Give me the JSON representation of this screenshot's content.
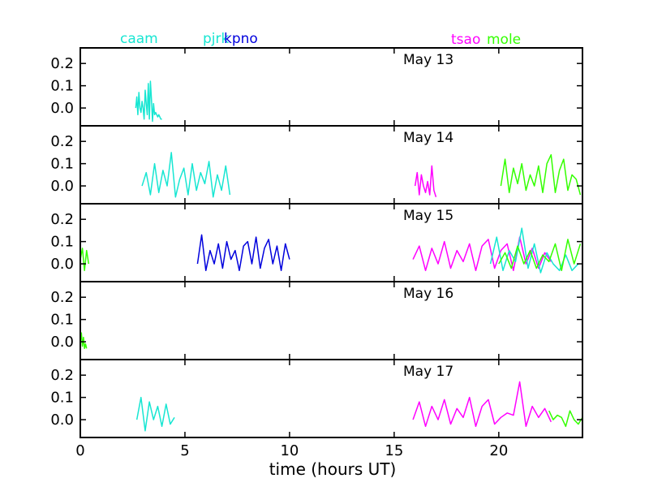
{
  "chart_data": {
    "type": "line",
    "xlabel": "time (hours UT)",
    "xlim": [
      0,
      24
    ],
    "ylim": [
      -0.08,
      0.27
    ],
    "x_ticks": [
      0,
      5,
      10,
      15,
      20
    ],
    "y_ticks": [
      0.0,
      0.1,
      0.2
    ],
    "x_tick_labels": [
      "0",
      "5",
      "10",
      "15",
      "20"
    ],
    "y_tick_labels": [
      "0.0",
      "0.1",
      "0.2"
    ],
    "station_legend": [
      {
        "name": "caam",
        "color": "#17e6d2"
      },
      {
        "name": "pjrk",
        "color": "#17e6d2"
      },
      {
        "name": "kpno",
        "color": "#0000dd"
      },
      {
        "name": "tsao",
        "color": "#ff00ff"
      },
      {
        "name": "mole",
        "color": "#33ff00"
      }
    ],
    "panels": [
      {
        "date": "May 13",
        "series": [
          {
            "name": "caam",
            "color": "#17e6d2",
            "x": [
              2.65,
              2.7,
              2.75,
              2.8,
              2.85,
              2.9,
              2.95,
              3.0,
              3.05,
              3.1,
              3.15,
              3.2,
              3.25,
              3.3,
              3.35,
              3.4,
              3.45,
              3.5,
              3.55,
              3.6,
              3.65,
              3.7,
              3.75,
              3.8,
              3.85,
              3.9
            ],
            "y": [
              0.0,
              0.05,
              -0.03,
              0.07,
              0.0,
              -0.02,
              0.03,
              0.0,
              -0.05,
              0.08,
              0.02,
              -0.03,
              0.11,
              -0.05,
              0.12,
              0.04,
              -0.06,
              0.02,
              -0.03,
              -0.02,
              -0.03,
              -0.04,
              -0.03,
              -0.04,
              -0.05,
              -0.05
            ]
          }
        ]
      },
      {
        "date": "May 14",
        "series": [
          {
            "name": "caam",
            "color": "#17e6d2",
            "x": [
              2.95,
              3.15,
              3.35,
              3.55,
              3.75,
              3.95,
              4.15,
              4.35,
              4.55,
              4.75,
              4.95,
              5.15,
              5.35,
              5.55,
              5.75,
              5.95,
              6.15,
              6.35,
              6.55,
              6.75,
              6.95,
              7.15
            ],
            "y": [
              0.0,
              0.06,
              -0.04,
              0.1,
              -0.03,
              0.07,
              0.0,
              0.15,
              -0.05,
              0.03,
              0.08,
              -0.04,
              0.1,
              -0.02,
              0.06,
              0.01,
              0.11,
              -0.05,
              0.05,
              -0.02,
              0.09,
              -0.04
            ]
          },
          {
            "name": "tsao",
            "color": "#ff00ff",
            "x": [
              16.0,
              16.1,
              16.2,
              16.3,
              16.4,
              16.5,
              16.6,
              16.7,
              16.8,
              16.9,
              17.0
            ],
            "y": [
              0.0,
              0.06,
              -0.04,
              0.05,
              0.0,
              -0.03,
              0.02,
              -0.04,
              0.09,
              -0.02,
              -0.05
            ]
          },
          {
            "name": "mole",
            "color": "#33ff00",
            "x": [
              20.1,
              20.3,
              20.5,
              20.7,
              20.9,
              21.1,
              21.3,
              21.5,
              21.7,
              21.9,
              22.1,
              22.3,
              22.5,
              22.7,
              22.9,
              23.1,
              23.3,
              23.5,
              23.7,
              23.9
            ],
            "y": [
              0.0,
              0.12,
              -0.03,
              0.08,
              0.01,
              0.1,
              -0.02,
              0.05,
              0.0,
              0.09,
              -0.03,
              0.1,
              0.14,
              -0.03,
              0.07,
              0.12,
              -0.02,
              0.05,
              0.03,
              -0.04
            ]
          }
        ]
      },
      {
        "date": "May 15",
        "series": [
          {
            "name": "mole",
            "color": "#33ff00",
            "x": [
              0.0,
              0.1,
              0.2,
              0.3,
              0.4
            ],
            "y": [
              0.02,
              0.07,
              -0.03,
              0.06,
              0.0
            ]
          },
          {
            "name": "kpno",
            "color": "#0000dd",
            "x": [
              5.6,
              5.8,
              6.0,
              6.2,
              6.4,
              6.6,
              6.8,
              7.0,
              7.2,
              7.4,
              7.6,
              7.8,
              8.0,
              8.2,
              8.4,
              8.6,
              8.8,
              9.0,
              9.2,
              9.4,
              9.6,
              9.8,
              10.0
            ],
            "y": [
              0.0,
              0.13,
              -0.03,
              0.06,
              0.0,
              0.09,
              -0.02,
              0.1,
              0.02,
              0.06,
              -0.03,
              0.08,
              0.1,
              0.0,
              0.12,
              -0.02,
              0.07,
              0.11,
              0.0,
              0.08,
              -0.03,
              0.09,
              0.02
            ]
          },
          {
            "name": "tsao",
            "color": "#ff00ff",
            "x": [
              15.9,
              16.2,
              16.5,
              16.8,
              17.1,
              17.4,
              17.7,
              18.0,
              18.3,
              18.6,
              18.9,
              19.2,
              19.5,
              19.8,
              20.1,
              20.4,
              20.7,
              21.0,
              21.3,
              21.6,
              21.9,
              22.2,
              22.5
            ],
            "y": [
              0.02,
              0.08,
              -0.03,
              0.07,
              0.0,
              0.1,
              -0.02,
              0.06,
              0.01,
              0.09,
              -0.03,
              0.08,
              0.11,
              -0.02,
              0.06,
              0.09,
              -0.03,
              0.12,
              0.0,
              0.07,
              -0.02,
              0.05,
              0.01
            ]
          },
          {
            "name": "pjrk",
            "color": "#17e6d2",
            "x": [
              19.6,
              19.9,
              20.2,
              20.5,
              20.8,
              21.1,
              21.4,
              21.7,
              22.0,
              22.3,
              22.6,
              22.9,
              23.2,
              23.5,
              23.8
            ],
            "y": [
              0.0,
              0.12,
              -0.03,
              0.06,
              0.01,
              0.16,
              -0.02,
              0.09,
              -0.04,
              0.05,
              0.0,
              -0.03,
              0.04,
              -0.03,
              0.0
            ]
          },
          {
            "name": "mole",
            "color": "#33ff00",
            "x": [
              20.0,
              20.3,
              20.6,
              20.9,
              21.2,
              21.5,
              21.8,
              22.1,
              22.4,
              22.7,
              23.0,
              23.3,
              23.6,
              23.9
            ],
            "y": [
              0.0,
              0.05,
              -0.02,
              0.08,
              0.0,
              0.06,
              -0.02,
              0.04,
              0.01,
              0.09,
              -0.03,
              0.11,
              0.0,
              0.09
            ]
          }
        ]
      },
      {
        "date": "May 16",
        "series": [
          {
            "name": "mole",
            "color": "#33ff00",
            "x": [
              0.0,
              0.05,
              0.1,
              0.15,
              0.2,
              0.25,
              0.3
            ],
            "y": [
              0.0,
              0.04,
              -0.02,
              0.02,
              -0.03,
              -0.01,
              -0.03
            ]
          }
        ]
      },
      {
        "date": "May 17",
        "series": [
          {
            "name": "caam",
            "color": "#17e6d2",
            "x": [
              2.7,
              2.9,
              3.1,
              3.3,
              3.5,
              3.7,
              3.9,
              4.1,
              4.3,
              4.5
            ],
            "y": [
              0.0,
              0.1,
              -0.05,
              0.08,
              0.0,
              0.06,
              -0.03,
              0.07,
              -0.02,
              0.01
            ]
          },
          {
            "name": "tsao",
            "color": "#ff00ff",
            "x": [
              15.9,
              16.2,
              16.5,
              16.8,
              17.1,
              17.4,
              17.7,
              18.0,
              18.3,
              18.6,
              18.9,
              19.2,
              19.5,
              19.8,
              20.1,
              20.4,
              20.7,
              21.0,
              21.3,
              21.6,
              21.9,
              22.2,
              22.5
            ],
            "y": [
              0.0,
              0.08,
              -0.03,
              0.06,
              0.0,
              0.09,
              -0.02,
              0.05,
              0.01,
              0.1,
              -0.03,
              0.06,
              0.09,
              -0.02,
              0.01,
              0.03,
              0.02,
              0.17,
              -0.03,
              0.06,
              0.01,
              0.05,
              -0.01
            ]
          },
          {
            "name": "mole",
            "color": "#33ff00",
            "x": [
              22.4,
              22.6,
              22.8,
              23.0,
              23.2,
              23.4,
              23.6,
              23.8,
              24.0
            ],
            "y": [
              0.04,
              0.0,
              0.02,
              0.01,
              -0.03,
              0.04,
              0.0,
              -0.02,
              0.01
            ]
          }
        ]
      }
    ]
  }
}
